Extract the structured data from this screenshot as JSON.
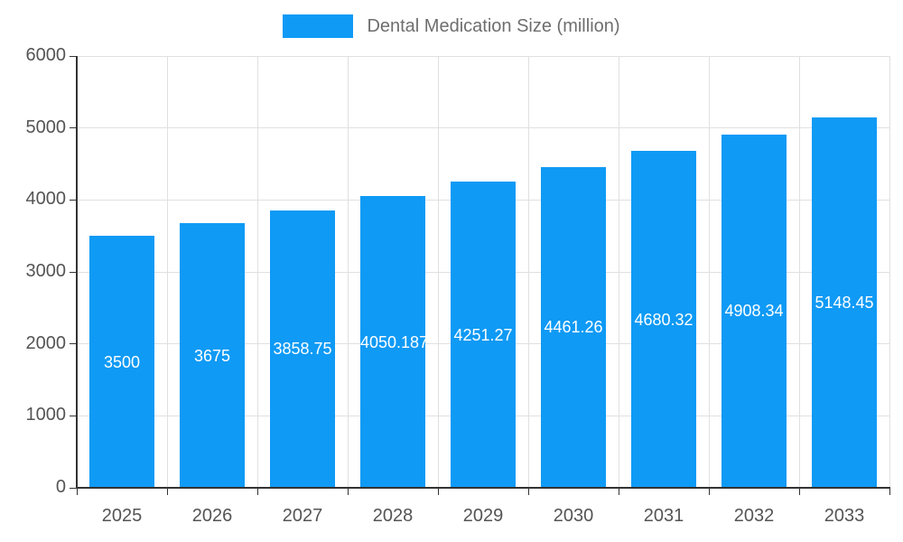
{
  "chart_data": {
    "type": "bar",
    "title": "Dental Medication Size (million)",
    "categories": [
      "2025",
      "2026",
      "2027",
      "2028",
      "2029",
      "2030",
      "2031",
      "2032",
      "2033"
    ],
    "values": [
      3500,
      3675,
      3858.75,
      4050.1875,
      4251.27,
      4461.26,
      4680.32,
      4908.34,
      5148.45
    ],
    "labels": [
      "3500",
      "3675",
      "3858.75",
      "4050.1875",
      "4251.27",
      "4461.26",
      "4680.32",
      "4908.34",
      "5148.45"
    ],
    "xlabel": "",
    "ylabel": "",
    "ylim": [
      0,
      6000
    ],
    "yticks": [
      0,
      1000,
      2000,
      3000,
      4000,
      5000,
      6000
    ],
    "grid": true,
    "legend_position": "top",
    "bar_color": "#0f9af5",
    "label_color": "#ffffff",
    "axis_text_color": "#545454",
    "legend_text_color": "#6e6e6e",
    "gridline_color": "#e0e0e0",
    "axis_line_color": "#333333",
    "background": "#ffffff"
  }
}
